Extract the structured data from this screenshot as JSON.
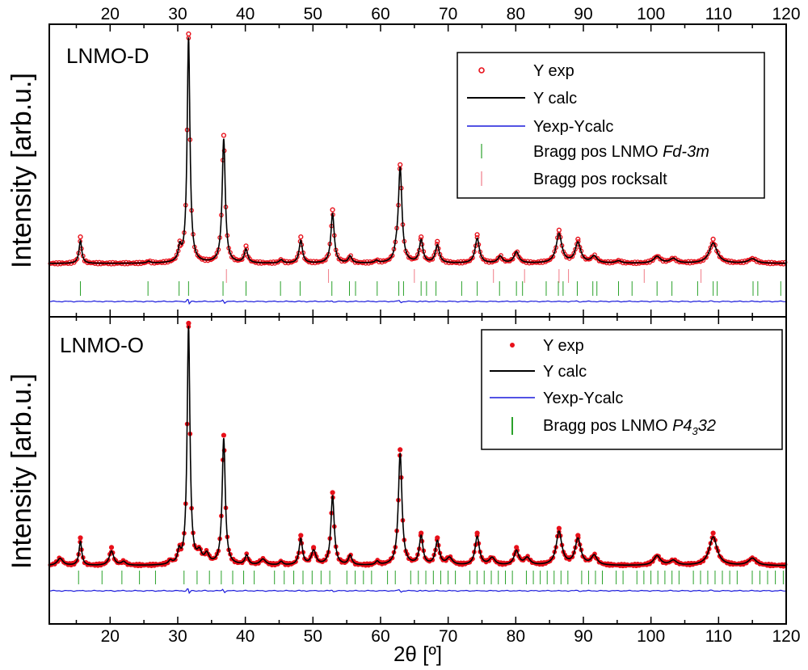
{
  "chart_data": {
    "type": "line",
    "xlabel": "2θ [º]",
    "x_ticks": [
      20,
      30,
      40,
      50,
      60,
      70,
      80,
      90,
      100,
      110,
      120
    ],
    "xlim": [
      11,
      120
    ],
    "grid": false,
    "panels": [
      {
        "id": "top",
        "label": "LNMO-D",
        "label_color": "#000000",
        "ylabel": "Intensity [arb.u.]",
        "y_range": [
          0,
          1
        ],
        "legend_position": "top-right",
        "series": [
          {
            "name": "Y exp",
            "kind": "points",
            "color": "#e8101a"
          },
          {
            "name": "Y calc",
            "kind": "line",
            "color": "#000000"
          },
          {
            "name": "Yexp-Ycalc",
            "kind": "line",
            "color": "#1a1adc"
          },
          {
            "name": "Bragg pos LNMO Fd-3m",
            "name_plain": "Bragg pos LNMO ",
            "name_italic": "Fd-3m",
            "kind": "ticks",
            "color": "#2aa12a"
          },
          {
            "name": "Bragg pos rocksalt",
            "kind": "ticks",
            "color": "#f07c88"
          }
        ],
        "baseline": 0.05,
        "peaks": [
          {
            "x": 15.6,
            "h": 0.1,
            "w": 0.25
          },
          {
            "x": 25.7,
            "h": 0.008,
            "w": 0.3
          },
          {
            "x": 30.3,
            "h": 0.06,
            "w": 0.25
          },
          {
            "x": 31.6,
            "h": 1.0,
            "w": 0.25
          },
          {
            "x": 36.8,
            "h": 0.55,
            "w": 0.28
          },
          {
            "x": 40.1,
            "h": 0.06,
            "w": 0.3
          },
          {
            "x": 45.3,
            "h": 0.015,
            "w": 0.3
          },
          {
            "x": 48.2,
            "h": 0.1,
            "w": 0.3
          },
          {
            "x": 52.9,
            "h": 0.22,
            "w": 0.3
          },
          {
            "x": 55.5,
            "h": 0.03,
            "w": 0.3
          },
          {
            "x": 59.4,
            "h": 0.01,
            "w": 0.3
          },
          {
            "x": 62.3,
            "h": 0.03,
            "w": 0.3
          },
          {
            "x": 62.9,
            "h": 0.42,
            "w": 0.32
          },
          {
            "x": 66.0,
            "h": 0.1,
            "w": 0.32
          },
          {
            "x": 68.4,
            "h": 0.08,
            "w": 0.35
          },
          {
            "x": 74.3,
            "h": 0.11,
            "w": 0.38
          },
          {
            "x": 77.7,
            "h": 0.03,
            "w": 0.4
          },
          {
            "x": 80.1,
            "h": 0.05,
            "w": 0.42
          },
          {
            "x": 86.4,
            "h": 0.13,
            "w": 0.5
          },
          {
            "x": 89.2,
            "h": 0.09,
            "w": 0.5
          },
          {
            "x": 91.6,
            "h": 0.03,
            "w": 0.5
          },
          {
            "x": 95.2,
            "h": 0.01,
            "w": 0.5
          },
          {
            "x": 100.9,
            "h": 0.03,
            "w": 0.6
          },
          {
            "x": 103.3,
            "h": 0.02,
            "w": 0.6
          },
          {
            "x": 109.2,
            "h": 0.09,
            "w": 0.7
          },
          {
            "x": 115.0,
            "h": 0.02,
            "w": 0.7
          }
        ],
        "bragg_main": [
          15.6,
          25.6,
          30.2,
          31.6,
          36.7,
          40.1,
          45.2,
          48.1,
          52.8,
          55.4,
          56.3,
          59.5,
          62.7,
          63.4,
          66.0,
          66.8,
          68.2,
          72.0,
          74.3,
          77.6,
          80.1,
          81.0,
          84.5,
          86.3,
          87.0,
          89.1,
          91.4,
          92.0,
          95.2,
          97.2,
          100.9,
          103.1,
          106.9,
          109.2,
          109.8,
          115.1,
          115.8,
          119.2
        ],
        "bragg_rocksalt": [
          37.2,
          52.3,
          65.0,
          76.7,
          81.3,
          86.4,
          87.8,
          99.0,
          107.4
        ]
      },
      {
        "id": "bottom",
        "label": "LNMO-O",
        "label_color": "#33ee33",
        "ylabel": "Intensity [arb.u.]",
        "y_range": [
          0,
          1
        ],
        "legend_position": "top-right",
        "series": [
          {
            "name": "Y exp",
            "kind": "points",
            "color": "#e8101a"
          },
          {
            "name": "Y calc",
            "kind": "line",
            "color": "#000000"
          },
          {
            "name": "Yexp-Ycalc",
            "kind": "line",
            "color": "#1a1adc"
          },
          {
            "name": "Bragg pos LNMO P4332",
            "name_plain": "Bragg pos LNMO ",
            "name_italic": "P4",
            "name_sub": "3",
            "name_italic2": "32",
            "kind": "ticks",
            "color": "#2aa12a"
          }
        ],
        "baseline": 0.05,
        "peaks": [
          {
            "x": 12.6,
            "h": 0.03,
            "w": 0.5
          },
          {
            "x": 15.6,
            "h": 0.1,
            "w": 0.25
          },
          {
            "x": 20.2,
            "h": 0.06,
            "w": 0.4
          },
          {
            "x": 22.0,
            "h": 0.015,
            "w": 0.4
          },
          {
            "x": 28.9,
            "h": 0.015,
            "w": 0.3
          },
          {
            "x": 30.2,
            "h": 0.05,
            "w": 0.25
          },
          {
            "x": 31.6,
            "h": 1.0,
            "w": 0.25
          },
          {
            "x": 33.2,
            "h": 0.045,
            "w": 0.4
          },
          {
            "x": 34.3,
            "h": 0.04,
            "w": 0.4
          },
          {
            "x": 36.8,
            "h": 0.53,
            "w": 0.28
          },
          {
            "x": 40.2,
            "h": 0.04,
            "w": 0.3
          },
          {
            "x": 42.6,
            "h": 0.025,
            "w": 0.5
          },
          {
            "x": 45.3,
            "h": 0.015,
            "w": 0.3
          },
          {
            "x": 48.2,
            "h": 0.11,
            "w": 0.3
          },
          {
            "x": 50.1,
            "h": 0.06,
            "w": 0.4
          },
          {
            "x": 52.9,
            "h": 0.29,
            "w": 0.3
          },
          {
            "x": 55.5,
            "h": 0.04,
            "w": 0.3
          },
          {
            "x": 59.5,
            "h": 0.015,
            "w": 0.3
          },
          {
            "x": 62.9,
            "h": 0.47,
            "w": 0.32
          },
          {
            "x": 66.0,
            "h": 0.12,
            "w": 0.32
          },
          {
            "x": 68.4,
            "h": 0.1,
            "w": 0.35
          },
          {
            "x": 70.2,
            "h": 0.03,
            "w": 0.5
          },
          {
            "x": 74.3,
            "h": 0.12,
            "w": 0.38
          },
          {
            "x": 76.5,
            "h": 0.03,
            "w": 0.5
          },
          {
            "x": 80.1,
            "h": 0.06,
            "w": 0.42
          },
          {
            "x": 81.7,
            "h": 0.03,
            "w": 0.5
          },
          {
            "x": 86.4,
            "h": 0.14,
            "w": 0.5
          },
          {
            "x": 89.2,
            "h": 0.11,
            "w": 0.5
          },
          {
            "x": 91.6,
            "h": 0.04,
            "w": 0.5
          },
          {
            "x": 100.9,
            "h": 0.04,
            "w": 0.6
          },
          {
            "x": 103.3,
            "h": 0.02,
            "w": 0.6
          },
          {
            "x": 109.2,
            "h": 0.12,
            "w": 0.7
          },
          {
            "x": 115.0,
            "h": 0.03,
            "w": 0.7
          }
        ]
      }
    ]
  }
}
